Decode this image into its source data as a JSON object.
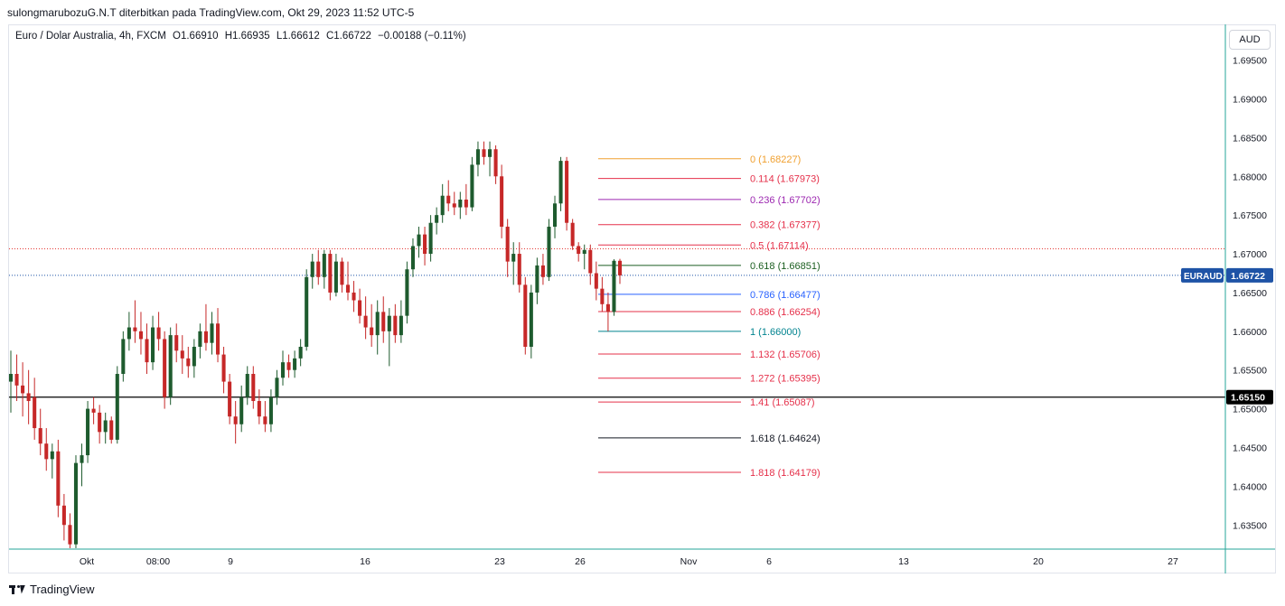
{
  "header": {
    "published_by": "sulongmarubozuG.N.T diterbitkan pada TradingView.com, Okt 29, 2023 11:52 UTC-5"
  },
  "legend": {
    "symbol": "Euro / Dolar Australia, 4h, FXCM",
    "open": "O1.66910",
    "high": "H1.66935",
    "low": "L1.66612",
    "close": "C1.66722",
    "change": "−0.00188 (−0.11%)"
  },
  "currency_button": "AUD",
  "footer": {
    "brand": "TradingView"
  },
  "colors": {
    "up": "#26a69a",
    "up_body": "#1e5b2e",
    "down": "#c62828",
    "axis": "#2962ff"
  },
  "chart_data": {
    "type": "candlestick",
    "symbol_label": "EURAUD",
    "last_price": "1.66722",
    "horizontal_line_label": "1.65150",
    "horizontal_line_value": 1.6515,
    "ylim": [
      1.632,
      1.6995
    ],
    "y_ticks": [
      "1.63500",
      "1.64000",
      "1.64500",
      "1.65000",
      "1.65500",
      "1.66000",
      "1.66500",
      "1.67000",
      "1.67500",
      "1.68000",
      "1.68500",
      "1.69000",
      "1.69500"
    ],
    "x_ticks": [
      "Okt",
      "08:00",
      "9",
      "16",
      "23",
      "26",
      "Nov",
      "6",
      "13",
      "20",
      "27"
    ],
    "fibonacci": [
      {
        "label": "0 (1.68227)",
        "value": 1.68227,
        "color": "#f0a030"
      },
      {
        "label": "0.114 (1.67973)",
        "value": 1.67973,
        "color": "#e5304a"
      },
      {
        "label": "0.236 (1.67702)",
        "value": 1.67702,
        "color": "#9c27b0"
      },
      {
        "label": "0.382 (1.67377)",
        "value": 1.67377,
        "color": "#e5304a"
      },
      {
        "label": "0.5 (1.67114)",
        "value": 1.67114,
        "color": "#e5304a"
      },
      {
        "label": "0.618 (1.66851)",
        "value": 1.66851,
        "color": "#1b5e20"
      },
      {
        "label": "0.786 (1.66477)",
        "value": 1.66477,
        "color": "#2962ff"
      },
      {
        "label": "0.886 (1.66254)",
        "value": 1.66254,
        "color": "#e5304a"
      },
      {
        "label": "1 (1.66000)",
        "value": 1.66,
        "color": "#00838f"
      },
      {
        "label": "1.132 (1.65706)",
        "value": 1.65706,
        "color": "#e5304a"
      },
      {
        "label": "1.272 (1.65395)",
        "value": 1.65395,
        "color": "#e5304a"
      },
      {
        "label": "1.41 (1.65087)",
        "value": 1.65087,
        "color": "#e5304a"
      },
      {
        "label": "1.618 (1.64624)",
        "value": 1.64624,
        "color": "#131722"
      },
      {
        "label": "1.818 (1.64179)",
        "value": 1.64179,
        "color": "#e5304a"
      }
    ],
    "candles": [
      {
        "o": 1.6535,
        "h": 1.6575,
        "l": 1.6495,
        "c": 1.6545
      },
      {
        "o": 1.6545,
        "h": 1.657,
        "l": 1.651,
        "c": 1.653
      },
      {
        "o": 1.653,
        "h": 1.656,
        "l": 1.649,
        "c": 1.652
      },
      {
        "o": 1.652,
        "h": 1.655,
        "l": 1.648,
        "c": 1.651
      },
      {
        "o": 1.6515,
        "h": 1.654,
        "l": 1.646,
        "c": 1.6475
      },
      {
        "o": 1.6475,
        "h": 1.65,
        "l": 1.644,
        "c": 1.6455
      },
      {
        "o": 1.6455,
        "h": 1.6475,
        "l": 1.642,
        "c": 1.6435
      },
      {
        "o": 1.6435,
        "h": 1.6455,
        "l": 1.641,
        "c": 1.6445
      },
      {
        "o": 1.6445,
        "h": 1.646,
        "l": 1.636,
        "c": 1.6375
      },
      {
        "o": 1.6375,
        "h": 1.639,
        "l": 1.633,
        "c": 1.635
      },
      {
        "o": 1.635,
        "h": 1.6365,
        "l": 1.632,
        "c": 1.6325
      },
      {
        "o": 1.6325,
        "h": 1.644,
        "l": 1.632,
        "c": 1.643
      },
      {
        "o": 1.643,
        "h": 1.6455,
        "l": 1.64,
        "c": 1.644
      },
      {
        "o": 1.644,
        "h": 1.651,
        "l": 1.643,
        "c": 1.65
      },
      {
        "o": 1.65,
        "h": 1.6515,
        "l": 1.648,
        "c": 1.6495
      },
      {
        "o": 1.6495,
        "h": 1.6505,
        "l": 1.6455,
        "c": 1.647
      },
      {
        "o": 1.647,
        "h": 1.6495,
        "l": 1.6455,
        "c": 1.6485
      },
      {
        "o": 1.6485,
        "h": 1.649,
        "l": 1.6455,
        "c": 1.646
      },
      {
        "o": 1.646,
        "h": 1.6555,
        "l": 1.6455,
        "c": 1.6545
      },
      {
        "o": 1.6545,
        "h": 1.66,
        "l": 1.6535,
        "c": 1.659
      },
      {
        "o": 1.659,
        "h": 1.6625,
        "l": 1.6575,
        "c": 1.6605
      },
      {
        "o": 1.6605,
        "h": 1.664,
        "l": 1.6585,
        "c": 1.66
      },
      {
        "o": 1.66,
        "h": 1.6625,
        "l": 1.657,
        "c": 1.659
      },
      {
        "o": 1.659,
        "h": 1.661,
        "l": 1.6545,
        "c": 1.656
      },
      {
        "o": 1.656,
        "h": 1.662,
        "l": 1.655,
        "c": 1.6605
      },
      {
        "o": 1.6605,
        "h": 1.6625,
        "l": 1.6575,
        "c": 1.659
      },
      {
        "o": 1.659,
        "h": 1.66,
        "l": 1.65,
        "c": 1.6515
      },
      {
        "o": 1.6515,
        "h": 1.6605,
        "l": 1.6505,
        "c": 1.6595
      },
      {
        "o": 1.6595,
        "h": 1.661,
        "l": 1.656,
        "c": 1.6575
      },
      {
        "o": 1.6575,
        "h": 1.6595,
        "l": 1.6545,
        "c": 1.6565
      },
      {
        "o": 1.6565,
        "h": 1.658,
        "l": 1.654,
        "c": 1.6555
      },
      {
        "o": 1.6555,
        "h": 1.659,
        "l": 1.654,
        "c": 1.658
      },
      {
        "o": 1.658,
        "h": 1.661,
        "l": 1.6565,
        "c": 1.66
      },
      {
        "o": 1.66,
        "h": 1.6635,
        "l": 1.6575,
        "c": 1.6585
      },
      {
        "o": 1.6585,
        "h": 1.6625,
        "l": 1.657,
        "c": 1.661
      },
      {
        "o": 1.661,
        "h": 1.663,
        "l": 1.656,
        "c": 1.657
      },
      {
        "o": 1.657,
        "h": 1.658,
        "l": 1.652,
        "c": 1.6535
      },
      {
        "o": 1.6535,
        "h": 1.6545,
        "l": 1.648,
        "c": 1.649
      },
      {
        "o": 1.649,
        "h": 1.651,
        "l": 1.6455,
        "c": 1.648
      },
      {
        "o": 1.648,
        "h": 1.653,
        "l": 1.647,
        "c": 1.6515
      },
      {
        "o": 1.6515,
        "h": 1.6555,
        "l": 1.6505,
        "c": 1.6545
      },
      {
        "o": 1.6545,
        "h": 1.6555,
        "l": 1.65,
        "c": 1.651
      },
      {
        "o": 1.651,
        "h": 1.6525,
        "l": 1.648,
        "c": 1.649
      },
      {
        "o": 1.649,
        "h": 1.651,
        "l": 1.647,
        "c": 1.648
      },
      {
        "o": 1.648,
        "h": 1.6525,
        "l": 1.647,
        "c": 1.6515
      },
      {
        "o": 1.6515,
        "h": 1.655,
        "l": 1.6505,
        "c": 1.654
      },
      {
        "o": 1.654,
        "h": 1.6575,
        "l": 1.653,
        "c": 1.656
      },
      {
        "o": 1.656,
        "h": 1.657,
        "l": 1.654,
        "c": 1.655
      },
      {
        "o": 1.655,
        "h": 1.6575,
        "l": 1.654,
        "c": 1.6565
      },
      {
        "o": 1.6565,
        "h": 1.659,
        "l": 1.6555,
        "c": 1.658
      },
      {
        "o": 1.658,
        "h": 1.668,
        "l": 1.6575,
        "c": 1.667
      },
      {
        "o": 1.667,
        "h": 1.67,
        "l": 1.6655,
        "c": 1.669
      },
      {
        "o": 1.669,
        "h": 1.6705,
        "l": 1.666,
        "c": 1.667
      },
      {
        "o": 1.667,
        "h": 1.6705,
        "l": 1.6655,
        "c": 1.67
      },
      {
        "o": 1.67,
        "h": 1.6705,
        "l": 1.664,
        "c": 1.665
      },
      {
        "o": 1.665,
        "h": 1.67,
        "l": 1.6645,
        "c": 1.669
      },
      {
        "o": 1.669,
        "h": 1.6695,
        "l": 1.665,
        "c": 1.666
      },
      {
        "o": 1.666,
        "h": 1.669,
        "l": 1.664,
        "c": 1.665
      },
      {
        "o": 1.665,
        "h": 1.6665,
        "l": 1.6625,
        "c": 1.664
      },
      {
        "o": 1.664,
        "h": 1.6655,
        "l": 1.661,
        "c": 1.662
      },
      {
        "o": 1.662,
        "h": 1.6645,
        "l": 1.659,
        "c": 1.6605
      },
      {
        "o": 1.6605,
        "h": 1.6635,
        "l": 1.658,
        "c": 1.6595
      },
      {
        "o": 1.6595,
        "h": 1.664,
        "l": 1.657,
        "c": 1.6625
      },
      {
        "o": 1.6625,
        "h": 1.6645,
        "l": 1.6585,
        "c": 1.66
      },
      {
        "o": 1.66,
        "h": 1.663,
        "l": 1.6555,
        "c": 1.662
      },
      {
        "o": 1.662,
        "h": 1.6635,
        "l": 1.6585,
        "c": 1.6595
      },
      {
        "o": 1.6595,
        "h": 1.664,
        "l": 1.6585,
        "c": 1.662
      },
      {
        "o": 1.662,
        "h": 1.669,
        "l": 1.661,
        "c": 1.668
      },
      {
        "o": 1.668,
        "h": 1.672,
        "l": 1.667,
        "c": 1.671
      },
      {
        "o": 1.671,
        "h": 1.6735,
        "l": 1.6695,
        "c": 1.6725
      },
      {
        "o": 1.6725,
        "h": 1.6735,
        "l": 1.6685,
        "c": 1.67
      },
      {
        "o": 1.67,
        "h": 1.675,
        "l": 1.669,
        "c": 1.674
      },
      {
        "o": 1.674,
        "h": 1.676,
        "l": 1.6725,
        "c": 1.675
      },
      {
        "o": 1.675,
        "h": 1.679,
        "l": 1.674,
        "c": 1.6775
      },
      {
        "o": 1.6775,
        "h": 1.6795,
        "l": 1.6755,
        "c": 1.6765
      },
      {
        "o": 1.6765,
        "h": 1.678,
        "l": 1.675,
        "c": 1.676
      },
      {
        "o": 1.676,
        "h": 1.678,
        "l": 1.6745,
        "c": 1.677
      },
      {
        "o": 1.677,
        "h": 1.679,
        "l": 1.675,
        "c": 1.676
      },
      {
        "o": 1.676,
        "h": 1.6825,
        "l": 1.6755,
        "c": 1.6815
      },
      {
        "o": 1.6815,
        "h": 1.6845,
        "l": 1.68,
        "c": 1.6835
      },
      {
        "o": 1.6835,
        "h": 1.6845,
        "l": 1.6815,
        "c": 1.6825
      },
      {
        "o": 1.6825,
        "h": 1.6845,
        "l": 1.68,
        "c": 1.6835
      },
      {
        "o": 1.6835,
        "h": 1.684,
        "l": 1.679,
        "c": 1.68
      },
      {
        "o": 1.68,
        "h": 1.6815,
        "l": 1.672,
        "c": 1.6735
      },
      {
        "o": 1.6735,
        "h": 1.6745,
        "l": 1.667,
        "c": 1.669
      },
      {
        "o": 1.669,
        "h": 1.6715,
        "l": 1.666,
        "c": 1.67
      },
      {
        "o": 1.67,
        "h": 1.6715,
        "l": 1.665,
        "c": 1.666
      },
      {
        "o": 1.666,
        "h": 1.667,
        "l": 1.657,
        "c": 1.658
      },
      {
        "o": 1.658,
        "h": 1.666,
        "l": 1.6565,
        "c": 1.665
      },
      {
        "o": 1.665,
        "h": 1.6695,
        "l": 1.6635,
        "c": 1.6685
      },
      {
        "o": 1.6685,
        "h": 1.67,
        "l": 1.666,
        "c": 1.667
      },
      {
        "o": 1.667,
        "h": 1.6745,
        "l": 1.6665,
        "c": 1.6735
      },
      {
        "o": 1.6735,
        "h": 1.6775,
        "l": 1.672,
        "c": 1.6765
      },
      {
        "o": 1.6765,
        "h": 1.6825,
        "l": 1.6755,
        "c": 1.682
      },
      {
        "o": 1.682,
        "h": 1.6825,
        "l": 1.673,
        "c": 1.674
      },
      {
        "o": 1.674,
        "h": 1.6745,
        "l": 1.6705,
        "c": 1.671
      },
      {
        "o": 1.671,
        "h": 1.6715,
        "l": 1.669,
        "c": 1.67
      },
      {
        "o": 1.67,
        "h": 1.6712,
        "l": 1.668,
        "c": 1.6705
      },
      {
        "o": 1.6705,
        "h": 1.6712,
        "l": 1.666,
        "c": 1.6675
      },
      {
        "o": 1.6675,
        "h": 1.669,
        "l": 1.664,
        "c": 1.6655
      },
      {
        "o": 1.6655,
        "h": 1.667,
        "l": 1.6625,
        "c": 1.6635
      },
      {
        "o": 1.6635,
        "h": 1.665,
        "l": 1.66,
        "c": 1.6625
      },
      {
        "o": 1.6625,
        "h": 1.6693,
        "l": 1.662,
        "c": 1.6691
      },
      {
        "o": 1.6691,
        "h": 1.66935,
        "l": 1.66612,
        "c": 1.66722
      }
    ]
  }
}
